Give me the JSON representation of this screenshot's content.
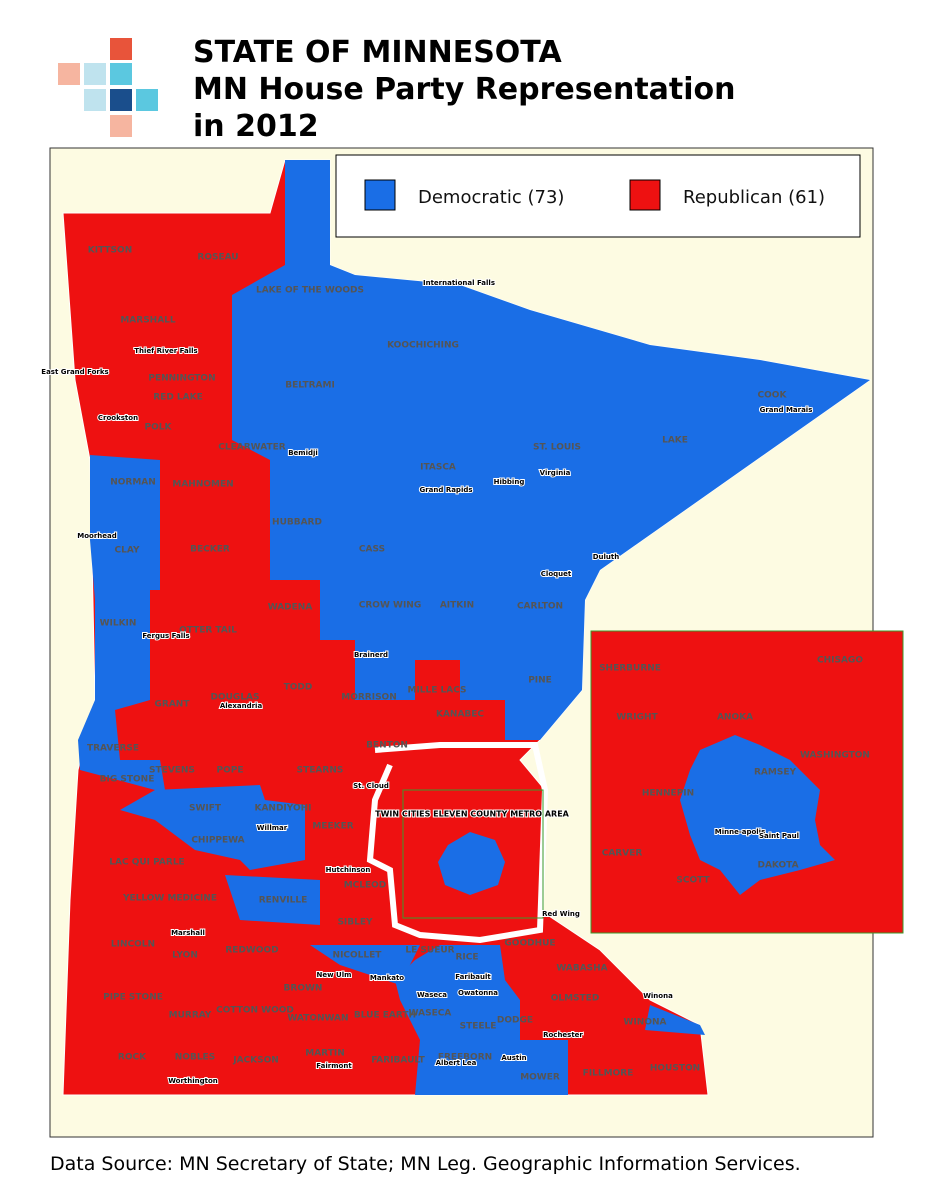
{
  "header": {
    "title": [
      "STATE OF MINNESOTA",
      "MN House Party Representation",
      "in 2012"
    ]
  },
  "legend": [
    {
      "label": "Democratic  (73)",
      "color": "#1a6ee6"
    },
    {
      "label": "Republican (61)",
      "color": "#ee1111"
    }
  ],
  "map": {
    "metro_label": "TWIN CITIES ELEVEN COUNTY METRO AREA",
    "counties": [
      "KITTSON",
      "ROSEAU",
      "LAKE OF THE WOODS",
      "MARSHALL",
      "KOOCHICHING",
      "PENNINGTON",
      "RED LAKE",
      "BELTRAMI",
      "COOK",
      "POLK",
      "CLEARWATER",
      "LAKE",
      "ST. LOUIS",
      "ITASCA",
      "NORMAN",
      "MAHNOMEN",
      "HUBBARD",
      "CASS",
      "CLAY",
      "BECKER",
      "CROW WING",
      "AITKIN",
      "CARLTON",
      "WILKIN",
      "OTTER TAIL",
      "WADENA",
      "TODD",
      "MORRISON",
      "MILLE LACS",
      "KANABEC",
      "PINE",
      "GRANT",
      "DOUGLAS",
      "TRAVERSE",
      "BIG STONE",
      "STEVENS",
      "POPE",
      "STEARNS",
      "BENTON",
      "SWIFT",
      "KANDIYOHI",
      "CHIPPEWA",
      "MEEKER",
      "LAC QUI PARLE",
      "RENVILLE",
      "MCLEOD",
      "SIBLEY",
      "YELLOW MEDICINE",
      "LINCOLN",
      "LYON",
      "REDWOOD",
      "NICOLLET",
      "LE SUEUR",
      "GOODHUE",
      "RICE",
      "WABASHA",
      "BROWN",
      "PIPE STONE",
      "MURRAY",
      "COTTON WOOD",
      "WATONWAN",
      "BLUE EARTH",
      "WASECA",
      "STEELE",
      "DODGE",
      "OLMSTED",
      "WINONA",
      "ROCK",
      "NOBLES",
      "JACKSON",
      "MARTIN",
      "FARIBAULT",
      "FREEBORN",
      "MOWER",
      "FILLMORE",
      "HOUSTON"
    ],
    "cities": [
      "International Falls",
      "Thief River Falls",
      "East Grand Forks",
      "Crookston",
      "Bemidji",
      "Grand Rapids",
      "Hibbing",
      "Virginia",
      "Moorhead",
      "Cloquet",
      "Duluth",
      "Brainerd",
      "Fergus Falls",
      "Alexandria",
      "St. Cloud",
      "Willmar",
      "Hutchinson",
      "Red Wing",
      "Marshall",
      "New Ulm",
      "Mankato",
      "Faribault",
      "Waseca",
      "Owatonna",
      "Rochester",
      "Winona",
      "Worthington",
      "Fairmont",
      "Albert Lea",
      "Austin",
      "Grand Marais"
    ],
    "inset_counties": [
      "SHERBURNE",
      "CHISAGO",
      "WRIGHT",
      "ANOKA",
      "WASHINGTON",
      "HENNEPIN",
      "RAMSEY",
      "CARVER",
      "SCOTT",
      "DAKOTA"
    ],
    "inset_cities": [
      "Minne-apolis",
      "Saint Paul"
    ]
  },
  "footer": "Data Source:  MN Secretary of State; MN Leg. Geographic Information Services."
}
